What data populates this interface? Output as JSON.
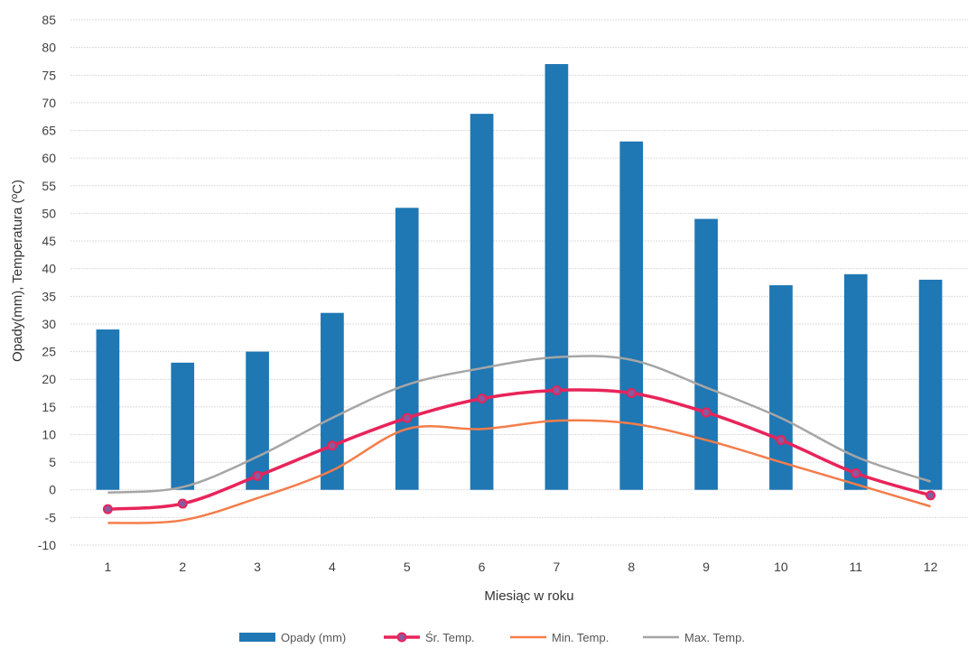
{
  "chart_data": {
    "type": "bar",
    "xlabel": "Miesiąc w roku",
    "ylabel": "Opady(mm), Temperatura (ºC)",
    "ylim": [
      -10,
      85
    ],
    "ytick_step": 5,
    "grid": true,
    "legend_position": "bottom",
    "categories": [
      "1",
      "2",
      "3",
      "4",
      "5",
      "6",
      "7",
      "8",
      "9",
      "10",
      "11",
      "12"
    ],
    "series": [
      {
        "name": "Opady (mm)",
        "kind": "bar",
        "color": "#1f77b4",
        "values": [
          29,
          23,
          25,
          32,
          51,
          68,
          77,
          63,
          49,
          37,
          39,
          38
        ]
      },
      {
        "name": "Śr. Temp.",
        "kind": "line",
        "color": "#e8245a",
        "markers": true,
        "values": [
          -3.5,
          -2.5,
          2.5,
          8,
          13,
          16.5,
          18,
          17.5,
          14,
          9,
          3,
          -1
        ]
      },
      {
        "name": "Min. Temp.",
        "kind": "line",
        "color": "#f47d4a",
        "markers": false,
        "values": [
          -6,
          -5.5,
          -1.5,
          3.5,
          11,
          11,
          12.5,
          12,
          9,
          5,
          1,
          -3
        ]
      },
      {
        "name": "Max. Temp.",
        "kind": "line",
        "color": "#a6a6a6",
        "markers": false,
        "values": [
          -0.5,
          0.5,
          6,
          13,
          19,
          22,
          24,
          23.5,
          18.5,
          13,
          6,
          1.5
        ]
      }
    ]
  }
}
